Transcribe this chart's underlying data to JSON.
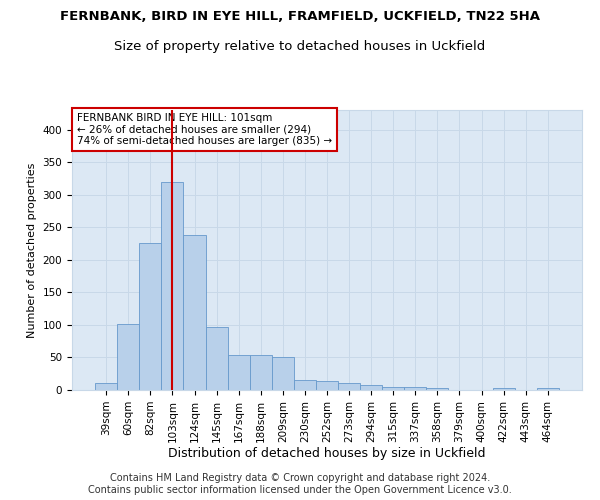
{
  "title": "FERNBANK, BIRD IN EYE HILL, FRAMFIELD, UCKFIELD, TN22 5HA",
  "subtitle": "Size of property relative to detached houses in Uckfield",
  "xlabel": "Distribution of detached houses by size in Uckfield",
  "ylabel": "Number of detached properties",
  "categories": [
    "39sqm",
    "60sqm",
    "82sqm",
    "103sqm",
    "124sqm",
    "145sqm",
    "167sqm",
    "188sqm",
    "209sqm",
    "230sqm",
    "252sqm",
    "273sqm",
    "294sqm",
    "315sqm",
    "337sqm",
    "358sqm",
    "379sqm",
    "400sqm",
    "422sqm",
    "443sqm",
    "464sqm"
  ],
  "values": [
    10,
    102,
    225,
    320,
    238,
    97,
    54,
    54,
    50,
    15,
    14,
    10,
    8,
    5,
    4,
    3,
    0,
    0,
    3,
    0,
    3
  ],
  "bar_color": "#b8d0ea",
  "bar_edge_color": "#6699cc",
  "vline_color": "#cc0000",
  "vline_index": 3,
  "annotation_text": "FERNBANK BIRD IN EYE HILL: 101sqm\n← 26% of detached houses are smaller (294)\n74% of semi-detached houses are larger (835) →",
  "annotation_box_color": "#ffffff",
  "annotation_box_edge": "#cc0000",
  "ylim": [
    0,
    430
  ],
  "yticks": [
    0,
    50,
    100,
    150,
    200,
    250,
    300,
    350,
    400
  ],
  "grid_color": "#c8d8e8",
  "bg_color": "#dce8f4",
  "footer": "Contains HM Land Registry data © Crown copyright and database right 2024.\nContains public sector information licensed under the Open Government Licence v3.0.",
  "title_fontsize": 9.5,
  "subtitle_fontsize": 9.5,
  "xlabel_fontsize": 9,
  "ylabel_fontsize": 8,
  "tick_fontsize": 7.5,
  "annotation_fontsize": 7.5,
  "footer_fontsize": 7
}
